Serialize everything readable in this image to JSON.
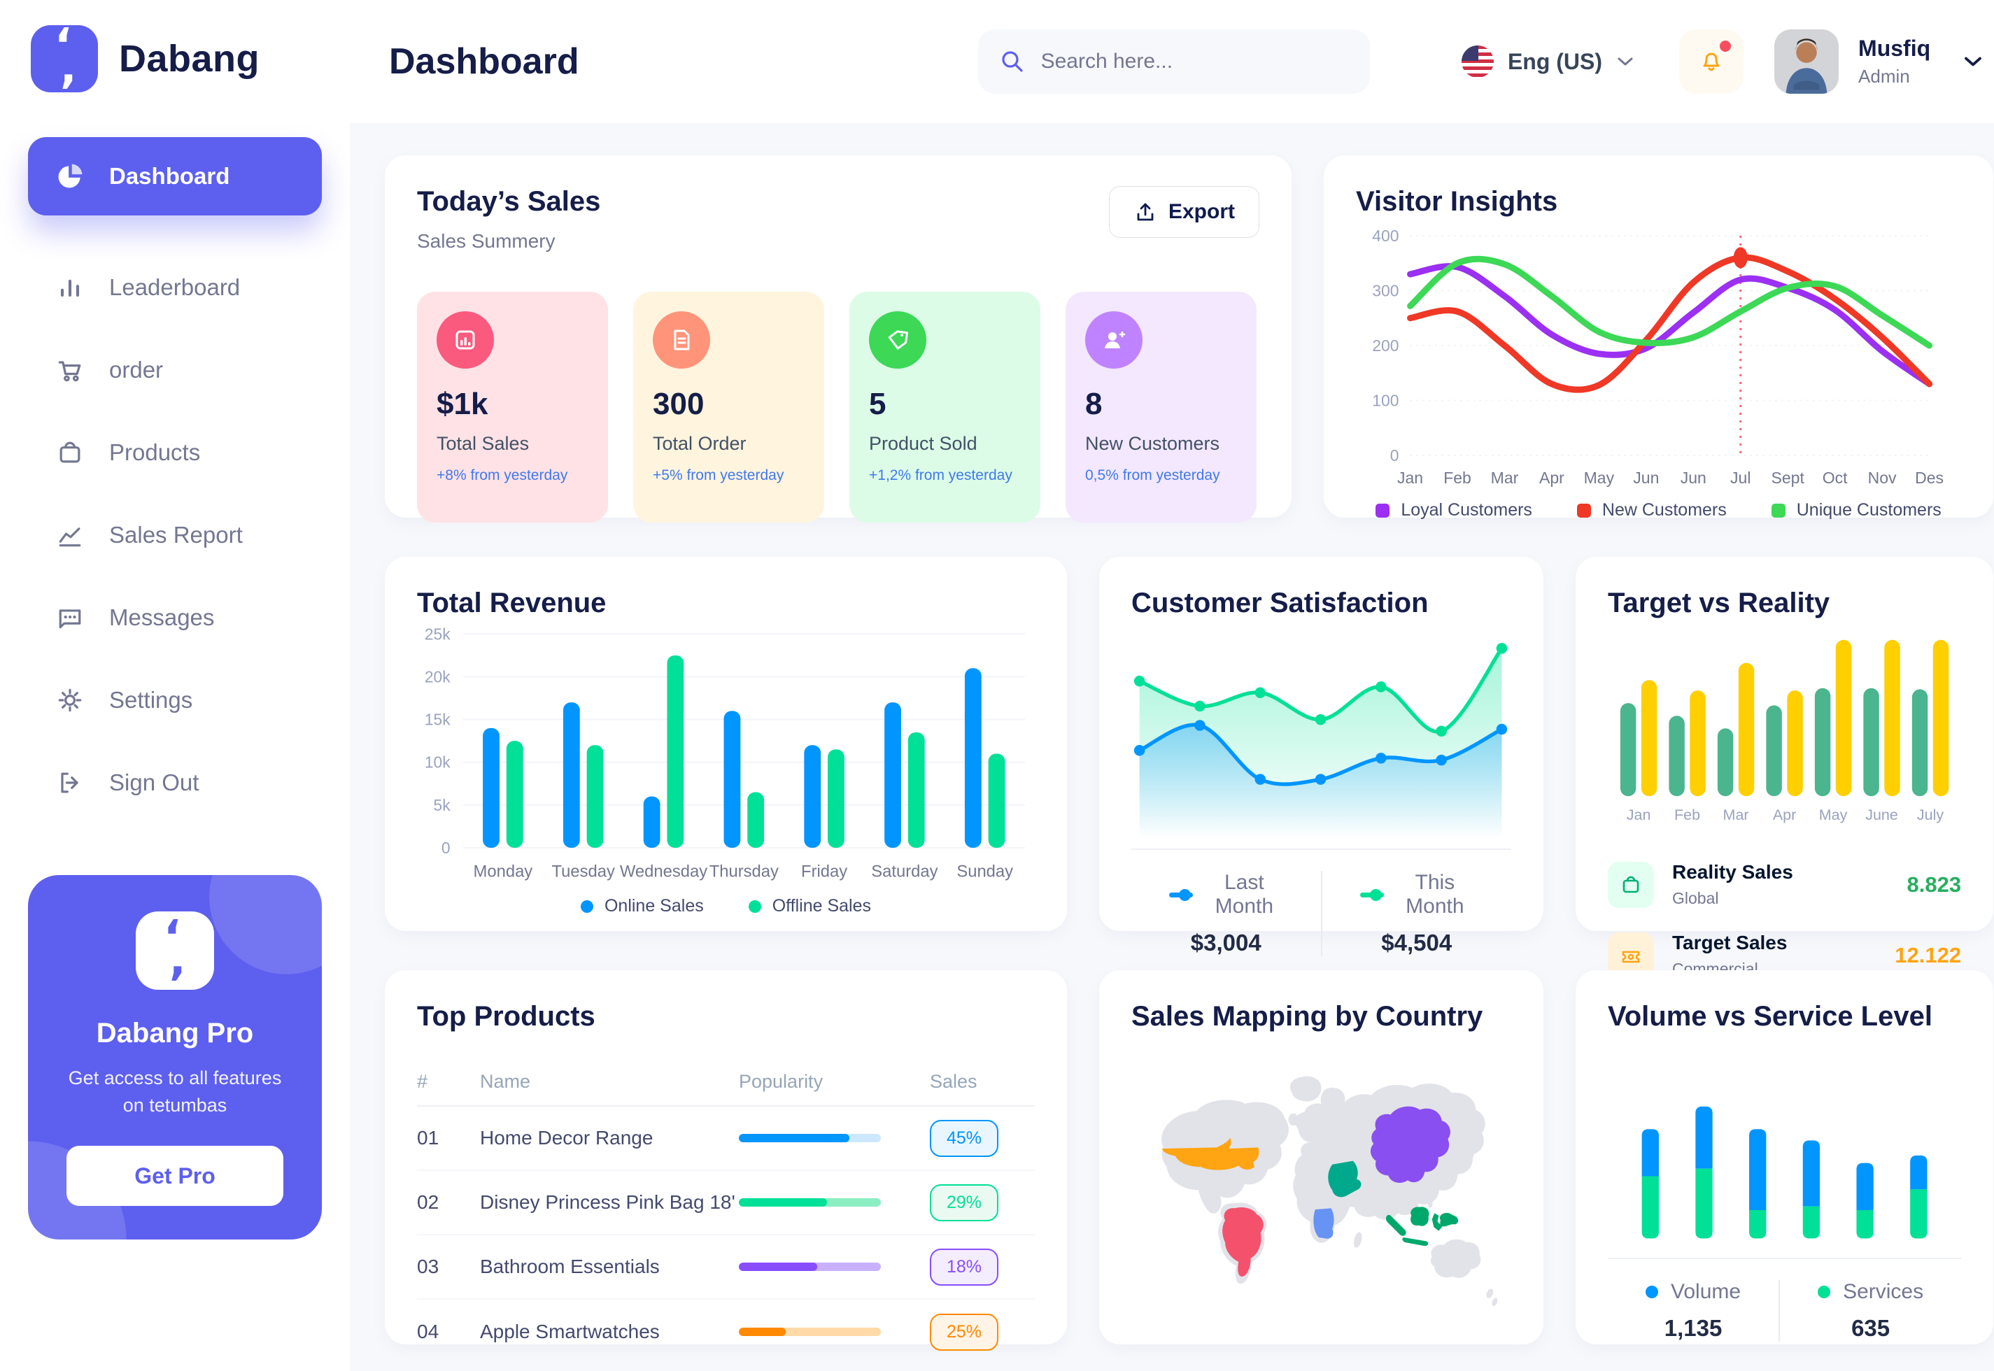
{
  "app": {
    "brand": "Dabang"
  },
  "sidebar": {
    "items": [
      {
        "label": "Dashboard",
        "icon": "pie-chart-icon",
        "active": true
      },
      {
        "label": "Leaderboard",
        "icon": "bar-chart-icon",
        "active": false
      },
      {
        "label": "order",
        "icon": "cart-icon",
        "active": false
      },
      {
        "label": "Products",
        "icon": "bag-icon",
        "active": false
      },
      {
        "label": "Sales Report",
        "icon": "line-chart-icon",
        "active": false
      },
      {
        "label": "Messages",
        "icon": "message-icon",
        "active": false
      },
      {
        "label": "Settings",
        "icon": "gear-icon",
        "active": false
      },
      {
        "label": "Sign Out",
        "icon": "sign-out-icon",
        "active": false
      }
    ],
    "pro_card": {
      "title": "Dabang Pro",
      "subtitle": "Get access to all features on tetumbas",
      "button": "Get Pro"
    }
  },
  "header": {
    "title": "Dashboard",
    "search_placeholder": "Search here...",
    "language": "Eng (US)",
    "user": {
      "name": "Musfiq",
      "role": "Admin"
    },
    "icons": [
      "search-icon",
      "us-flag-icon",
      "chevron-down-icon",
      "bell-icon"
    ]
  },
  "today_sales": {
    "title": "Today’s Sales",
    "subtitle": "Sales Summery",
    "export_label": "Export",
    "stats": [
      {
        "value": "$1k",
        "label": "Total Sales",
        "delta": "+8% from yesterday",
        "bg": "#ffe2e5",
        "icon_bg": "#fa5a7d",
        "icon": "bar-chart-icon"
      },
      {
        "value": "300",
        "label": "Total Order",
        "delta": "+5% from yesterday",
        "bg": "#fff4de",
        "icon_bg": "#ff947a",
        "icon": "document-icon"
      },
      {
        "value": "5",
        "label": "Product Sold",
        "delta": "+1,2% from yesterday",
        "bg": "#dcfce7",
        "icon_bg": "#3cd856",
        "icon": "tag-icon"
      },
      {
        "value": "8",
        "label": "New Customers",
        "delta": "0,5% from yesterday",
        "bg": "#f3e8ff",
        "icon_bg": "#bf83ff",
        "icon": "user-plus-icon"
      }
    ]
  },
  "chart_data": [
    {
      "id": "visitor_insights",
      "type": "line",
      "title": "Visitor Insights",
      "categories": [
        "Jan",
        "Feb",
        "Mar",
        "Apr",
        "May",
        "Jun",
        "Jun",
        "Jul",
        "Sept",
        "Oct",
        "Nov",
        "Des"
      ],
      "series": [
        {
          "name": "Loyal Customers",
          "color": "#9b2ff2",
          "values": [
            330,
            343,
            290,
            220,
            185,
            195,
            260,
            320,
            305,
            265,
            190,
            130
          ]
        },
        {
          "name": "New Customers",
          "color": "#ef3826",
          "values": [
            250,
            262,
            200,
            130,
            128,
            210,
            315,
            360,
            335,
            285,
            215,
            130
          ]
        },
        {
          "name": "Unique Customers",
          "color": "#3cd856",
          "values": [
            272,
            350,
            348,
            290,
            225,
            205,
            215,
            262,
            305,
            308,
            255,
            200
          ]
        }
      ],
      "ylim": [
        0,
        400
      ],
      "yticks": [
        0,
        100,
        200,
        300,
        400
      ],
      "marker": {
        "series": 1,
        "index": 7
      },
      "grid": true,
      "legend_position": "bottom"
    },
    {
      "id": "total_revenue",
      "type": "bar",
      "title": "Total Revenue",
      "categories": [
        "Monday",
        "Tuesday",
        "Wednesday",
        "Thursday",
        "Friday",
        "Saturday",
        "Sunday"
      ],
      "series": [
        {
          "name": "Online Sales",
          "color": "#0095ff",
          "values": [
            14000,
            17000,
            6000,
            16000,
            12000,
            17000,
            21000
          ]
        },
        {
          "name": "Offline Sales",
          "color": "#00e096",
          "values": [
            12500,
            12000,
            22500,
            6500,
            11500,
            13500,
            11000
          ]
        }
      ],
      "ylim": [
        0,
        25000
      ],
      "yticks": [
        0,
        5000,
        10000,
        15000,
        20000,
        25000
      ],
      "ytick_labels": [
        "0",
        "5k",
        "10k",
        "15k",
        "20k",
        "25k"
      ],
      "grid": true,
      "legend_position": "bottom"
    },
    {
      "id": "customer_satisfaction",
      "type": "area",
      "title": "Customer Satisfaction",
      "series": [
        {
          "name": "Last Month",
          "color": "#0095ff",
          "total_label": "$3,004",
          "values": [
            42,
            55,
            27,
            27,
            38,
            37,
            53
          ]
        },
        {
          "name": "This Month",
          "color": "#00e096",
          "total_label": "$4,504",
          "values": [
            78,
            65,
            72,
            58,
            75,
            52,
            95
          ]
        }
      ],
      "ylim": [
        0,
        100
      ],
      "grid": false,
      "legend_position": "bottom"
    },
    {
      "id": "target_vs_reality",
      "type": "bar",
      "title": "Target vs Reality",
      "categories": [
        "Jan",
        "Feb",
        "Mar",
        "Apr",
        "May",
        "June",
        "July"
      ],
      "series": [
        {
          "name": "Reality Sales",
          "color": "#4ab58e",
          "values": [
            8.1,
            7.0,
            5.9,
            7.9,
            9.4,
            9.4,
            9.3
          ]
        },
        {
          "name": "Target Sales",
          "color": "#ffcf00",
          "values": [
            10.1,
            9.2,
            11.6,
            9.2,
            13.6,
            13.6,
            13.6
          ]
        }
      ],
      "ylim": [
        0,
        14
      ],
      "grid": false,
      "legend": [
        {
          "label": "Reality Sales",
          "sub": "Global",
          "value": "8.823",
          "value_color": "#27ae60",
          "icon": "bag-icon",
          "icon_bg": "#e2fff1",
          "icon_color": "#00b074"
        },
        {
          "label": "Target Sales",
          "sub": "Commercial",
          "value": "12.122",
          "value_color": "#ffa412",
          "icon": "ticket-icon",
          "icon_bg": "#fff2d8",
          "icon_color": "#ffa412"
        }
      ]
    },
    {
      "id": "volume_vs_service",
      "type": "stacked-bar",
      "title": "Volume vs Service Level",
      "series": [
        {
          "name": "Volume",
          "color": "#0095ff",
          "total_label": "1,135",
          "values": [
            250,
            330,
            430,
            350,
            250,
            180
          ]
        },
        {
          "name": "Services",
          "color": "#00e096",
          "total_label": "635",
          "values": [
            330,
            370,
            150,
            170,
            150,
            260
          ]
        }
      ],
      "ylim": [
        0,
        1000
      ],
      "grid": false,
      "legend_position": "bottom"
    },
    {
      "id": "sales_mapping",
      "type": "map",
      "title": "Sales Mapping by Country",
      "countries": [
        {
          "name": "United States",
          "color": "#ffa412"
        },
        {
          "name": "Brazil",
          "color": "#f4516c"
        },
        {
          "name": "Saudi Arabia",
          "color": "#00a88c"
        },
        {
          "name": "DR Congo",
          "color": "#6793f5"
        },
        {
          "name": "China",
          "color": "#8a4ff0"
        },
        {
          "name": "Indonesia",
          "color": "#00a86b"
        }
      ]
    },
    {
      "id": "top_products",
      "type": "table",
      "title": "Top Products",
      "columns": [
        "#",
        "Name",
        "Popularity",
        "Sales"
      ],
      "rows": [
        {
          "num": "01",
          "name": "Home Decor Range",
          "popularity": 78,
          "popularity_pct": "78%",
          "sales": "45%",
          "color": "#0095ff",
          "light": "#cde7ff",
          "badge_bg": "#eaf6ff"
        },
        {
          "num": "02",
          "name": "Disney Princess Pink Bag 18'",
          "popularity": 62,
          "popularity_pct": "62%",
          "sales": "29%",
          "color": "#00e096",
          "light": "#8ceec3",
          "badge_bg": "#eafaf3"
        },
        {
          "num": "03",
          "name": "Bathroom Essentials",
          "popularity": 55,
          "popularity_pct": "55%",
          "sales": "18%",
          "color": "#884dff",
          "light": "#c9b0ff",
          "badge_bg": "#f4edff"
        },
        {
          "num": "04",
          "name": "Apple Smartwatches",
          "popularity": 33,
          "popularity_pct": "33%",
          "sales": "25%",
          "color": "#ff8900",
          "light": "#ffd9a8",
          "badge_bg": "#fff4e5"
        }
      ]
    }
  ]
}
